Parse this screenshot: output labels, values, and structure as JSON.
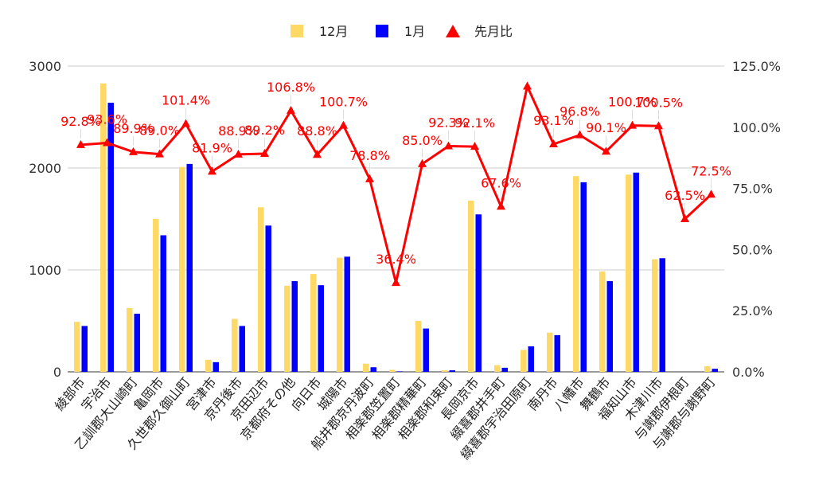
{
  "chart_data": {
    "type": "bar",
    "categories": [
      "綾部市",
      "宇治市",
      "乙訓郡大山崎町",
      "亀岡市",
      "久世郡久御山町",
      "宮津市",
      "京丹後市",
      "京田辺市",
      "京都府その他",
      "向日市",
      "城陽市",
      "船井郡京丹波町",
      "相楽郡笠置町",
      "相楽郡精華町",
      "相楽郡和束町",
      "長岡京市",
      "綴喜郡井手町",
      "綴喜郡宇治田原町",
      "南丹市",
      "八幡市",
      "舞鶴市",
      "福知山市",
      "木津川市",
      "与謝郡伊根町",
      "与謝郡与謝野町"
    ],
    "series": [
      {
        "name": "12月",
        "type": "bar",
        "axis": "left",
        "color": "#ffd966",
        "values": [
          490,
          2830,
          625,
          1500,
          2010,
          118,
          520,
          1615,
          845,
          960,
          1120,
          80,
          20,
          500,
          15,
          1680,
          65,
          215,
          385,
          1920,
          985,
          1935,
          1105,
          0,
          55
        ]
      },
      {
        "name": "1月",
        "type": "bar",
        "axis": "left",
        "color": "#0000ff",
        "values": [
          450,
          2640,
          570,
          1340,
          2040,
          95,
          450,
          1435,
          890,
          850,
          1130,
          45,
          5,
          425,
          15,
          1545,
          40,
          250,
          360,
          1860,
          890,
          1955,
          1115,
          0,
          30
        ]
      },
      {
        "name": "先月比",
        "type": "line",
        "axis": "right",
        "color": "#ff0000",
        "values": [
          92.8,
          93.6,
          89.9,
          89.0,
          101.4,
          81.9,
          88.9,
          89.2,
          106.8,
          88.8,
          100.7,
          78.8,
          36.4,
          85.0,
          92.3,
          92.1,
          67.6,
          116.7,
          93.1,
          96.8,
          90.1,
          100.7,
          100.5,
          62.5,
          72.5
        ],
        "labels": [
          "92.8%",
          "93.6%",
          "89.9%",
          "89.0%",
          "101.4%",
          "81.9%",
          "88.9%",
          "89.2%",
          "106.8%",
          "88.8%",
          "100.7%",
          "78.8%",
          "36.4%",
          "85.0%",
          "92.3%",
          "92.1%",
          "67.6%",
          "",
          "93.1%",
          "96.8%",
          "90.1%",
          "100.7%",
          "100.5%",
          "62.5%",
          "72.5%"
        ]
      }
    ],
    "left_axis": {
      "ticks": [
        "0",
        "1000",
        "2000",
        "3000"
      ],
      "ylim": [
        0,
        3000
      ]
    },
    "right_axis": {
      "ticks": [
        "0.0%",
        "25.0%",
        "50.0%",
        "75.0%",
        "100.0%",
        "125.0%"
      ],
      "ylim": [
        0,
        125
      ]
    },
    "legend": {
      "position": "top",
      "entries": [
        "12月",
        "1月",
        "先月比"
      ]
    },
    "grid": true,
    "title": "",
    "xlabel": "",
    "ylabel": ""
  }
}
